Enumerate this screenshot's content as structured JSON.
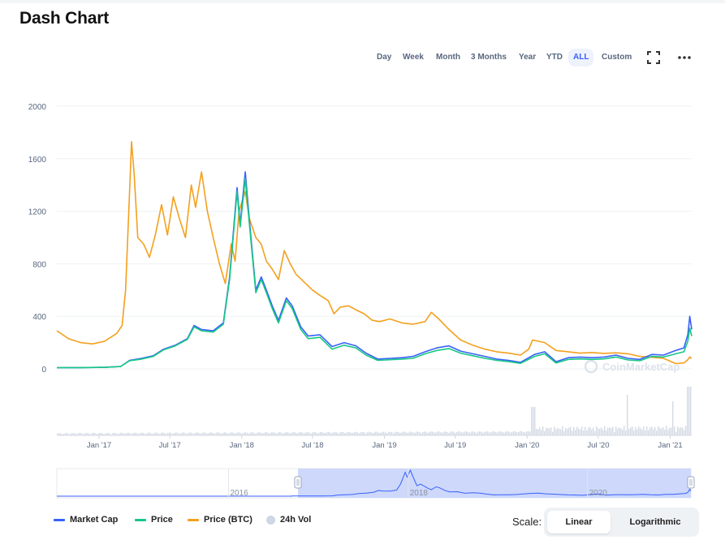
{
  "page": {
    "title": "Dash Chart"
  },
  "toolbar": {
    "ranges": [
      "Day",
      "Week",
      "Month",
      "3 Months",
      "Year",
      "YTD",
      "ALL",
      "Custom"
    ],
    "active_range": "ALL",
    "fullscreen_icon": "fullscreen-icon",
    "more_icon": "more-options-icon"
  },
  "watermark": "CoinMarketCap",
  "legend": {
    "items": [
      {
        "label": "Market Cap",
        "color": "#3861fb"
      },
      {
        "label": "Price",
        "color": "#16c784"
      },
      {
        "label": "Price (BTC)",
        "color": "#f3a01d"
      },
      {
        "label": "24h Vol",
        "color": "#cfd6e4"
      }
    ]
  },
  "scale": {
    "label": "Scale:",
    "options": [
      "Linear",
      "Logarithmic"
    ],
    "active": "Linear"
  },
  "navigator": {
    "year_labels": [
      "2016",
      "2018",
      "2020"
    ]
  },
  "chart_data": {
    "type": "line",
    "title": "Dash Chart",
    "y_ticks": [
      0,
      400,
      800,
      1200,
      1600,
      2000
    ],
    "ylim": [
      0,
      2000
    ],
    "x_ticks": [
      "Jan '17",
      "Jul '17",
      "Jan '18",
      "Jul '18",
      "Jan '19",
      "Jul '19",
      "Jan '20",
      "Jul '20",
      "Jan '21"
    ],
    "xlim": [
      "2016-09-15",
      "2021-02-25"
    ],
    "grid": true,
    "legend_position": "bottom-left",
    "series": [
      {
        "name": "Market Cap",
        "color": "#3861fb",
        "points": [
          [
            "2016-09-15",
            9
          ],
          [
            "2016-11-15",
            10
          ],
          [
            "2017-01-15",
            12
          ],
          [
            "2017-02-25",
            18
          ],
          [
            "2017-03-20",
            65
          ],
          [
            "2017-04-20",
            80
          ],
          [
            "2017-05-20",
            100
          ],
          [
            "2017-06-15",
            150
          ],
          [
            "2017-07-15",
            180
          ],
          [
            "2017-08-15",
            230
          ],
          [
            "2017-09-01",
            330
          ],
          [
            "2017-09-20",
            300
          ],
          [
            "2017-10-20",
            290
          ],
          [
            "2017-11-15",
            350
          ],
          [
            "2017-12-01",
            700
          ],
          [
            "2017-12-20",
            1380
          ],
          [
            "2017-12-28",
            1100
          ],
          [
            "2018-01-10",
            1500
          ],
          [
            "2018-01-20",
            1150
          ],
          [
            "2018-02-06",
            600
          ],
          [
            "2018-02-20",
            700
          ],
          [
            "2018-03-05",
            600
          ],
          [
            "2018-03-20",
            480
          ],
          [
            "2018-04-05",
            370
          ],
          [
            "2018-04-25",
            540
          ],
          [
            "2018-05-10",
            480
          ],
          [
            "2018-06-01",
            320
          ],
          [
            "2018-06-20",
            250
          ],
          [
            "2018-07-20",
            260
          ],
          [
            "2018-08-20",
            170
          ],
          [
            "2018-09-20",
            200
          ],
          [
            "2018-10-20",
            175
          ],
          [
            "2018-11-15",
            120
          ],
          [
            "2018-12-15",
            75
          ],
          [
            "2019-01-15",
            80
          ],
          [
            "2019-02-15",
            85
          ],
          [
            "2019-03-15",
            95
          ],
          [
            "2019-04-15",
            130
          ],
          [
            "2019-05-15",
            160
          ],
          [
            "2019-06-15",
            175
          ],
          [
            "2019-07-15",
            135
          ],
          [
            "2019-08-15",
            115
          ],
          [
            "2019-09-15",
            95
          ],
          [
            "2019-10-15",
            75
          ],
          [
            "2019-11-15",
            65
          ],
          [
            "2019-12-15",
            50
          ],
          [
            "2020-01-20",
            110
          ],
          [
            "2020-02-15",
            130
          ],
          [
            "2020-03-15",
            55
          ],
          [
            "2020-04-15",
            85
          ],
          [
            "2020-05-15",
            90
          ],
          [
            "2020-06-15",
            85
          ],
          [
            "2020-07-15",
            90
          ],
          [
            "2020-08-15",
            105
          ],
          [
            "2020-09-15",
            80
          ],
          [
            "2020-10-15",
            72
          ],
          [
            "2020-11-15",
            110
          ],
          [
            "2020-12-15",
            105
          ],
          [
            "2021-01-15",
            140
          ],
          [
            "2021-02-05",
            160
          ],
          [
            "2021-02-15",
            260
          ],
          [
            "2021-02-20",
            400
          ],
          [
            "2021-02-25",
            300
          ]
        ]
      },
      {
        "name": "Price",
        "color": "#16c784",
        "points": [
          [
            "2016-09-15",
            9
          ],
          [
            "2016-11-15",
            10
          ],
          [
            "2017-01-15",
            12
          ],
          [
            "2017-02-25",
            18
          ],
          [
            "2017-03-20",
            62
          ],
          [
            "2017-04-20",
            75
          ],
          [
            "2017-05-20",
            95
          ],
          [
            "2017-06-15",
            145
          ],
          [
            "2017-07-15",
            175
          ],
          [
            "2017-08-15",
            225
          ],
          [
            "2017-09-01",
            320
          ],
          [
            "2017-09-20",
            290
          ],
          [
            "2017-10-20",
            280
          ],
          [
            "2017-11-15",
            340
          ],
          [
            "2017-12-01",
            680
          ],
          [
            "2017-12-20",
            1350
          ],
          [
            "2017-12-28",
            1080
          ],
          [
            "2018-01-10",
            1450
          ],
          [
            "2018-01-20",
            1120
          ],
          [
            "2018-02-06",
            580
          ],
          [
            "2018-02-20",
            680
          ],
          [
            "2018-03-05",
            580
          ],
          [
            "2018-03-20",
            460
          ],
          [
            "2018-04-05",
            350
          ],
          [
            "2018-04-25",
            520
          ],
          [
            "2018-05-10",
            460
          ],
          [
            "2018-06-01",
            300
          ],
          [
            "2018-06-20",
            230
          ],
          [
            "2018-07-20",
            240
          ],
          [
            "2018-08-20",
            150
          ],
          [
            "2018-09-20",
            180
          ],
          [
            "2018-10-20",
            160
          ],
          [
            "2018-11-15",
            105
          ],
          [
            "2018-12-15",
            65
          ],
          [
            "2019-01-15",
            70
          ],
          [
            "2019-02-15",
            75
          ],
          [
            "2019-03-15",
            80
          ],
          [
            "2019-04-15",
            115
          ],
          [
            "2019-05-15",
            140
          ],
          [
            "2019-06-15",
            155
          ],
          [
            "2019-07-15",
            120
          ],
          [
            "2019-08-15",
            100
          ],
          [
            "2019-09-15",
            80
          ],
          [
            "2019-10-15",
            65
          ],
          [
            "2019-11-15",
            55
          ],
          [
            "2019-12-15",
            42
          ],
          [
            "2020-01-20",
            95
          ],
          [
            "2020-02-15",
            115
          ],
          [
            "2020-03-15",
            45
          ],
          [
            "2020-04-15",
            72
          ],
          [
            "2020-05-15",
            76
          ],
          [
            "2020-06-15",
            72
          ],
          [
            "2020-07-15",
            76
          ],
          [
            "2020-08-15",
            90
          ],
          [
            "2020-09-15",
            68
          ],
          [
            "2020-10-15",
            62
          ],
          [
            "2020-11-15",
            95
          ],
          [
            "2020-12-15",
            90
          ],
          [
            "2021-01-15",
            115
          ],
          [
            "2021-02-05",
            130
          ],
          [
            "2021-02-15",
            210
          ],
          [
            "2021-02-20",
            310
          ],
          [
            "2021-02-25",
            250
          ]
        ]
      },
      {
        "name": "Price (BTC)",
        "color": "#f3a01d",
        "points": [
          [
            "2016-09-15",
            290
          ],
          [
            "2016-10-15",
            230
          ],
          [
            "2016-11-15",
            200
          ],
          [
            "2016-12-15",
            190
          ],
          [
            "2017-01-15",
            210
          ],
          [
            "2017-02-15",
            270
          ],
          [
            "2017-03-01",
            330
          ],
          [
            "2017-03-10",
            600
          ],
          [
            "2017-03-20",
            1350
          ],
          [
            "2017-03-25",
            1730
          ],
          [
            "2017-04-01",
            1480
          ],
          [
            "2017-04-10",
            1000
          ],
          [
            "2017-04-25",
            950
          ],
          [
            "2017-05-10",
            850
          ],
          [
            "2017-05-25",
            1020
          ],
          [
            "2017-06-10",
            1250
          ],
          [
            "2017-06-25",
            1020
          ],
          [
            "2017-07-10",
            1310
          ],
          [
            "2017-07-25",
            1150
          ],
          [
            "2017-08-10",
            1000
          ],
          [
            "2017-08-25",
            1400
          ],
          [
            "2017-09-05",
            1230
          ],
          [
            "2017-09-20",
            1500
          ],
          [
            "2017-10-05",
            1200
          ],
          [
            "2017-10-20",
            1000
          ],
          [
            "2017-11-05",
            800
          ],
          [
            "2017-11-20",
            650
          ],
          [
            "2017-12-05",
            950
          ],
          [
            "2017-12-15",
            820
          ],
          [
            "2017-12-25",
            1200
          ],
          [
            "2018-01-10",
            1350
          ],
          [
            "2018-01-20",
            1150
          ],
          [
            "2018-02-06",
            1000
          ],
          [
            "2018-02-20",
            950
          ],
          [
            "2018-03-05",
            820
          ],
          [
            "2018-03-20",
            760
          ],
          [
            "2018-04-05",
            680
          ],
          [
            "2018-04-20",
            900
          ],
          [
            "2018-05-05",
            800
          ],
          [
            "2018-05-20",
            720
          ],
          [
            "2018-06-10",
            660
          ],
          [
            "2018-07-01",
            600
          ],
          [
            "2018-07-20",
            560
          ],
          [
            "2018-08-10",
            520
          ],
          [
            "2018-08-25",
            420
          ],
          [
            "2018-09-10",
            470
          ],
          [
            "2018-10-01",
            480
          ],
          [
            "2018-10-20",
            450
          ],
          [
            "2018-11-10",
            420
          ],
          [
            "2018-12-01",
            370
          ],
          [
            "2018-12-20",
            360
          ],
          [
            "2019-01-15",
            380
          ],
          [
            "2019-02-15",
            350
          ],
          [
            "2019-03-15",
            340
          ],
          [
            "2019-04-15",
            360
          ],
          [
            "2019-05-01",
            430
          ],
          [
            "2019-05-20",
            380
          ],
          [
            "2019-06-15",
            300
          ],
          [
            "2019-07-15",
            220
          ],
          [
            "2019-08-15",
            180
          ],
          [
            "2019-09-15",
            150
          ],
          [
            "2019-10-15",
            130
          ],
          [
            "2019-11-15",
            120
          ],
          [
            "2019-12-15",
            105
          ],
          [
            "2020-01-05",
            150
          ],
          [
            "2020-01-15",
            220
          ],
          [
            "2020-02-15",
            200
          ],
          [
            "2020-03-15",
            140
          ],
          [
            "2020-04-15",
            130
          ],
          [
            "2020-05-15",
            120
          ],
          [
            "2020-06-15",
            125
          ],
          [
            "2020-07-15",
            118
          ],
          [
            "2020-08-15",
            122
          ],
          [
            "2020-09-15",
            115
          ],
          [
            "2020-10-15",
            95
          ],
          [
            "2020-11-15",
            88
          ],
          [
            "2020-12-15",
            80
          ],
          [
            "2021-01-15",
            40
          ],
          [
            "2021-02-05",
            45
          ],
          [
            "2021-02-15",
            70
          ],
          [
            "2021-02-20",
            90
          ],
          [
            "2021-02-25",
            80
          ]
        ]
      }
    ]
  }
}
